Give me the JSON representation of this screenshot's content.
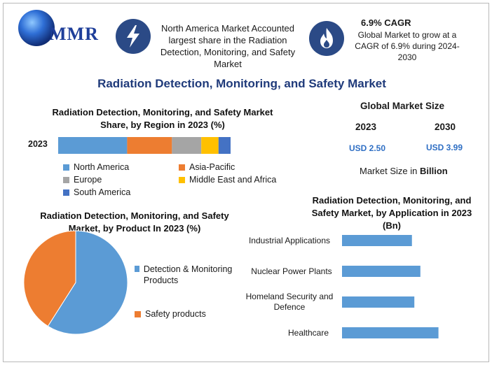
{
  "brand": {
    "logo_text": "MMR"
  },
  "info": {
    "share_text": "North America Market Accounted largest share in the Radiation Detection, Monitoring, and Safety Market",
    "cagr_title": "6.9% CAGR",
    "cagr_text": "Global Market to grow at a CAGR of 6.9% during 2024-2030",
    "icons": [
      "lightning-icon",
      "flame-icon"
    ]
  },
  "main_title": "Radiation Detection, Monitoring, and Safety Market",
  "market_size": {
    "title": "Global Market Size",
    "years": [
      "2023",
      "2030"
    ],
    "values": [
      "USD 2.50",
      "USD 3.99"
    ],
    "note_prefix": "Market Size in ",
    "note_unit": "Billion"
  },
  "colors": {
    "blue": "#5b9bd5",
    "orange": "#ed7d31",
    "gray": "#a5a5a5",
    "yellow": "#ffc000",
    "navy": "#4472c4",
    "title_blue": "#1f3a7a",
    "value_blue": "#2f6fc4"
  },
  "chart_data": [
    {
      "type": "bar",
      "orientation": "horizontal-stacked",
      "title": "Radiation Detection, Monitoring, and Safety Market Share, by Region in 2023 (%)",
      "categories": [
        "2023"
      ],
      "series": [
        {
          "name": "North America",
          "values": [
            40
          ],
          "color": "#5b9bd5"
        },
        {
          "name": "Asia-Pacific",
          "values": [
            26
          ],
          "color": "#ed7d31"
        },
        {
          "name": "Europe",
          "values": [
            17
          ],
          "color": "#a5a5a5"
        },
        {
          "name": "Middle East and Africa",
          "values": [
            10
          ],
          "color": "#ffc000"
        },
        {
          "name": "South America",
          "values": [
            7
          ],
          "color": "#4472c4"
        }
      ],
      "legend_placement": "bottom"
    },
    {
      "type": "pie",
      "title": "Radiation Detection, Monitoring, and Safety Market, by Product In 2023 (%)",
      "labels": [
        "Detection & Monitoring Products",
        "Safety products"
      ],
      "values": [
        59,
        41
      ],
      "colors": [
        "#5b9bd5",
        "#ed7d31"
      ],
      "legend_placement": "right"
    },
    {
      "type": "bar",
      "orientation": "horizontal",
      "title": "Radiation Detection, Monitoring, and Safety Market, by Application in 2023 (Bn)",
      "categories": [
        "Industrial Applications",
        "Nuclear Power Plants",
        "Homeland Security and Defence",
        "Healthcare"
      ],
      "values": [
        0.58,
        0.65,
        0.6,
        0.8
      ],
      "color": "#5b9bd5",
      "grid": false
    }
  ]
}
